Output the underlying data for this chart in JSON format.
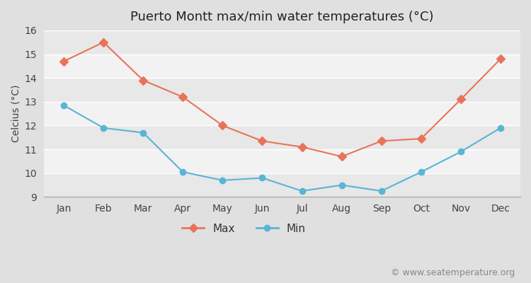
{
  "title": "Puerto Montt max/min water temperatures (°C)",
  "ylabel": "Celcius (°C)",
  "months": [
    "Jan",
    "Feb",
    "Mar",
    "Apr",
    "May",
    "Jun",
    "Jul",
    "Aug",
    "Sep",
    "Oct",
    "Nov",
    "Dec"
  ],
  "max_values": [
    14.7,
    15.5,
    13.9,
    13.2,
    12.0,
    11.35,
    11.1,
    10.7,
    11.35,
    11.45,
    13.1,
    14.8
  ],
  "min_values": [
    12.85,
    11.9,
    11.7,
    10.05,
    9.7,
    9.8,
    9.25,
    9.5,
    9.25,
    10.05,
    10.9,
    11.9
  ],
  "max_color": "#e8735a",
  "min_color": "#5ab4d6",
  "ylim": [
    9,
    16
  ],
  "yticks": [
    9,
    10,
    11,
    12,
    13,
    14,
    15,
    16
  ],
  "band_colors": [
    "#e8e8e8",
    "#f2f2f2"
  ],
  "outer_bg": "#e0e0e0",
  "watermark": "© www.seatemperature.org",
  "legend_max": "Max",
  "legend_min": "Min",
  "title_fontsize": 13,
  "label_fontsize": 10,
  "tick_fontsize": 10,
  "legend_fontsize": 11,
  "watermark_fontsize": 9
}
